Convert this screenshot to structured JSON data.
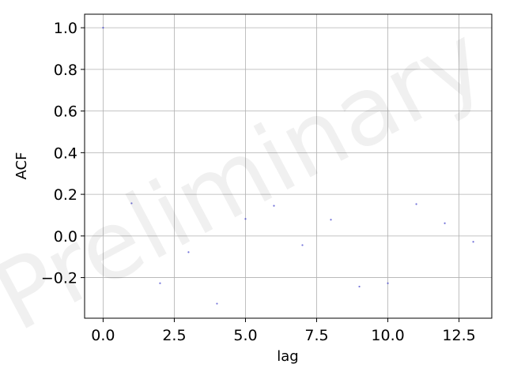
{
  "chart_data": {
    "type": "scatter",
    "title": "",
    "xlabel": "lag",
    "ylabel": "ACF",
    "xlim": [
      -0.65,
      13.65
    ],
    "ylim": [
      -0.395,
      1.065
    ],
    "xticks": [
      0.0,
      2.5,
      5.0,
      7.5,
      10.0,
      12.5
    ],
    "xtick_labels": [
      "0.0",
      "2.5",
      "5.0",
      "7.5",
      "10.0",
      "12.5"
    ],
    "yticks": [
      -0.2,
      0.0,
      0.2,
      0.4,
      0.6,
      0.8,
      1.0
    ],
    "ytick_labels": [
      "−0.2",
      "0.0",
      "0.2",
      "0.4",
      "0.6",
      "0.8",
      "1.0"
    ],
    "grid": true,
    "marker_color": "#4444cc",
    "x": [
      0,
      1,
      2,
      3,
      4,
      5,
      6,
      7,
      8,
      9,
      10,
      11,
      12,
      13
    ],
    "y": [
      1.0,
      0.157,
      -0.227,
      -0.078,
      -0.325,
      0.082,
      0.145,
      -0.044,
      0.078,
      -0.243,
      -0.227,
      0.153,
      0.061,
      -0.028
    ],
    "watermark": "Preliminary"
  }
}
